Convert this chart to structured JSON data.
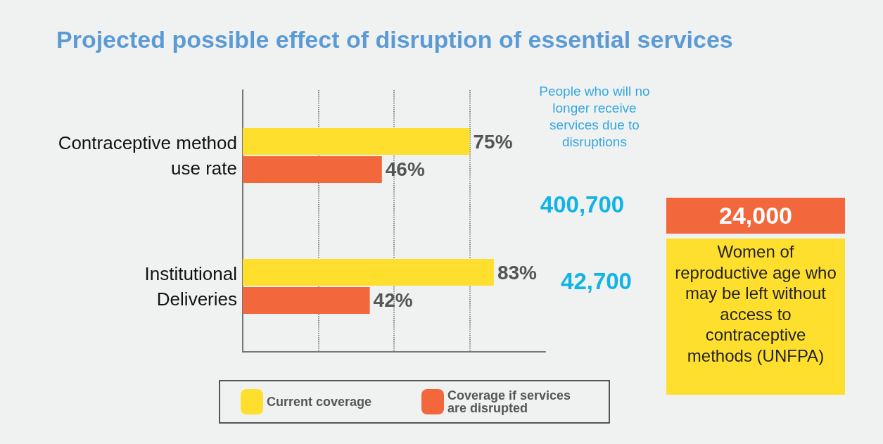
{
  "chart_data": {
    "type": "bar",
    "orientation": "horizontal",
    "title": "Projected possible effect of disruption of essential services",
    "categories": [
      "Contraceptive method use rate",
      "Institutional Deliveries"
    ],
    "series": [
      {
        "name": "Current coverage",
        "color": "#ffdf2e",
        "values": [
          75,
          83
        ],
        "value_labels": [
          "75%",
          "83%"
        ]
      },
      {
        "name": "Coverage if services are disrupted",
        "color": "#f2673b",
        "values": [
          46,
          42
        ],
        "value_labels": [
          "46%",
          "42%"
        ]
      }
    ],
    "xlim": [
      0,
      100
    ],
    "xticks": [
      {
        "value": 25,
        "label": null
      },
      {
        "value": 50,
        "label": null
      },
      {
        "value": 75,
        "label": null
      }
    ],
    "tick_labels": "y",
    "grid": "x",
    "legend": "bottom",
    "annotations": [
      "People who will no longer receive services due to disruptions",
      "400,700",
      "42,700",
      "24,000",
      "Women of reproductive age who may be left without access to contraceptive methods (UNFPA)"
    ]
  }
}
